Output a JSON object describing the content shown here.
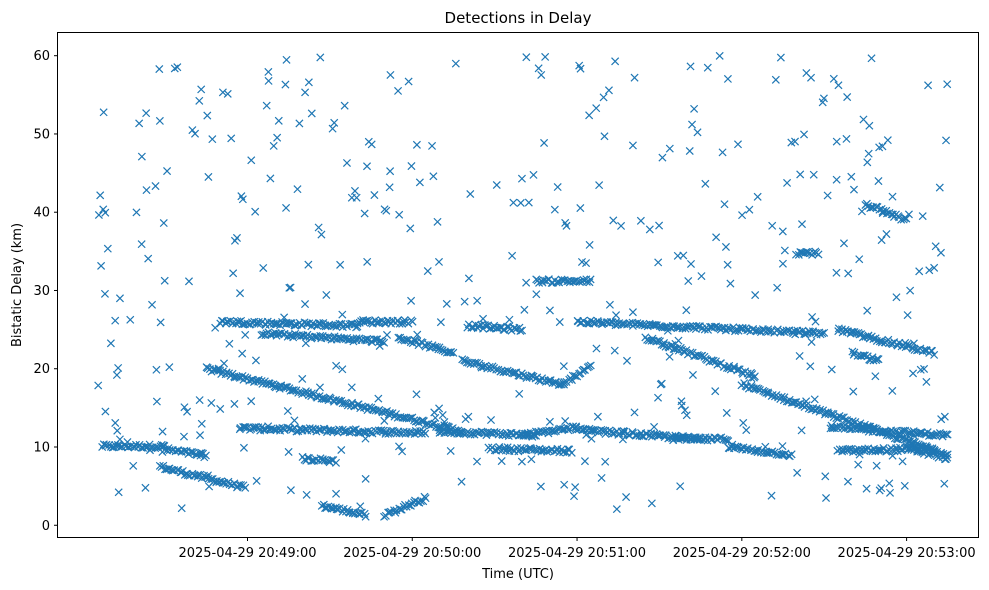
{
  "chart_data": {
    "type": "scatter",
    "title": "Detections in Delay",
    "xlabel": "Time (UTC)",
    "ylabel": "Bistatic Delay (km)",
    "x_is_time": true,
    "xlim": [
      "2025-04-29 20:47:51",
      "2025-04-29 20:53:26"
    ],
    "ylim": [
      -1.5,
      62.9
    ],
    "xticks": [
      "2025-04-29 20:49:00",
      "2025-04-29 20:50:00",
      "2025-04-29 20:51:00",
      "2025-04-29 20:52:00",
      "2025-04-29 20:53:00"
    ],
    "yticks": [
      0,
      10,
      20,
      30,
      40,
      50,
      60
    ],
    "marker": "x",
    "color": "#1f77b4",
    "grid": false,
    "tracks": [
      {
        "x_start": "2025-04-29 20:48:07",
        "x_end": "2025-04-29 20:48:30",
        "y_start": 10.1,
        "y_end": 10.1
      },
      {
        "x_start": "2025-04-29 20:48:30",
        "x_end": "2025-04-29 20:48:45",
        "y_start": 9.7,
        "y_end": 8.9
      },
      {
        "x_start": "2025-04-29 20:48:28",
        "x_end": "2025-04-29 20:48:59",
        "y_start": 7.5,
        "y_end": 4.8
      },
      {
        "x_start": "2025-04-29 20:48:45",
        "x_end": "2025-04-29 20:50:18",
        "y_start": 20.0,
        "y_end": 12.0
      },
      {
        "x_start": "2025-04-29 20:48:57",
        "x_end": "2025-04-29 20:50:05",
        "y_start": 12.4,
        "y_end": 11.8
      },
      {
        "x_start": "2025-04-29 20:48:50",
        "x_end": "2025-04-29 20:49:40",
        "y_start": 26.0,
        "y_end": 25.5
      },
      {
        "x_start": "2025-04-29 20:49:05",
        "x_end": "2025-04-29 20:49:50",
        "y_start": 24.5,
        "y_end": 23.5
      },
      {
        "x_start": "2025-04-29 20:49:20",
        "x_end": "2025-04-29 20:49:32",
        "y_start": 8.5,
        "y_end": 8.2
      },
      {
        "x_start": "2025-04-29 20:49:27",
        "x_end": "2025-04-29 20:49:43",
        "y_start": 2.5,
        "y_end": 1.3
      },
      {
        "x_start": "2025-04-29 20:49:50",
        "x_end": "2025-04-29 20:50:05",
        "y_start": 1.3,
        "y_end": 3.5
      },
      {
        "x_start": "2025-04-29 20:49:40",
        "x_end": "2025-04-29 20:50:00",
        "y_start": 26.0,
        "y_end": 26.0
      },
      {
        "x_start": "2025-04-29 20:49:55",
        "x_end": "2025-04-29 20:50:15",
        "y_start": 24.0,
        "y_end": 22.0
      },
      {
        "x_start": "2025-04-29 20:50:10",
        "x_end": "2025-04-29 20:50:45",
        "y_start": 12.0,
        "y_end": 11.5
      },
      {
        "x_start": "2025-04-29 20:50:18",
        "x_end": "2025-04-29 20:50:55",
        "y_start": 21.0,
        "y_end": 18.0
      },
      {
        "x_start": "2025-04-29 20:50:20",
        "x_end": "2025-04-29 20:50:40",
        "y_start": 25.5,
        "y_end": 25.0
      },
      {
        "x_start": "2025-04-29 20:50:28",
        "x_end": "2025-04-29 20:50:58",
        "y_start": 9.8,
        "y_end": 9.5
      },
      {
        "x_start": "2025-04-29 20:50:45",
        "x_end": "2025-04-29 20:51:05",
        "y_start": 31.2,
        "y_end": 31.2
      },
      {
        "x_start": "2025-04-29 20:50:40",
        "x_end": "2025-04-29 20:51:00",
        "y_start": 11.5,
        "y_end": 12.5
      },
      {
        "x_start": "2025-04-29 20:50:55",
        "x_end": "2025-04-29 20:51:05",
        "y_start": 18.0,
        "y_end": 20.5
      },
      {
        "x_start": "2025-04-29 20:51:00",
        "x_end": "2025-04-29 20:52:00",
        "y_start": 26.0,
        "y_end": 25.0
      },
      {
        "x_start": "2025-04-29 20:51:00",
        "x_end": "2025-04-29 20:51:45",
        "y_start": 12.2,
        "y_end": 11.0
      },
      {
        "x_start": "2025-04-29 20:51:25",
        "x_end": "2025-04-29 20:52:05",
        "y_start": 24.0,
        "y_end": 19.0
      },
      {
        "x_start": "2025-04-29 20:51:35",
        "x_end": "2025-04-29 20:51:55",
        "y_start": 11.0,
        "y_end": 11.0
      },
      {
        "x_start": "2025-04-29 20:51:55",
        "x_end": "2025-04-29 20:52:18",
        "y_start": 10.0,
        "y_end": 9.0
      },
      {
        "x_start": "2025-04-29 20:52:00",
        "x_end": "2025-04-29 20:52:30",
        "y_start": 25.0,
        "y_end": 24.5
      },
      {
        "x_start": "2025-04-29 20:52:00",
        "x_end": "2025-04-29 20:53:15",
        "y_start": 18.0,
        "y_end": 9.0
      },
      {
        "x_start": "2025-04-29 20:52:20",
        "x_end": "2025-04-29 20:52:28",
        "y_start": 34.8,
        "y_end": 34.8
      },
      {
        "x_start": "2025-04-29 20:52:32",
        "x_end": "2025-04-29 20:53:15",
        "y_start": 12.5,
        "y_end": 11.5
      },
      {
        "x_start": "2025-04-29 20:52:35",
        "x_end": "2025-04-29 20:53:10",
        "y_start": 25.0,
        "y_end": 22.0
      },
      {
        "x_start": "2025-04-29 20:52:35",
        "x_end": "2025-04-29 20:53:10",
        "y_start": 9.5,
        "y_end": 9.8
      },
      {
        "x_start": "2025-04-29 20:52:40",
        "x_end": "2025-04-29 20:52:50",
        "y_start": 22.0,
        "y_end": 21.0
      },
      {
        "x_start": "2025-04-29 20:52:45",
        "x_end": "2025-04-29 20:53:00",
        "y_start": 41.0,
        "y_end": 39.0
      },
      {
        "x_start": "2025-04-29 20:53:00",
        "x_end": "2025-04-29 20:53:15",
        "y_start": 10.0,
        "y_end": 8.5
      }
    ],
    "scatter_clusters": [
      {
        "x_start": "2025-04-29 20:48:05",
        "x_end": "2025-04-29 20:53:15",
        "y_min": 2,
        "y_max": 60,
        "count": 420
      }
    ]
  }
}
